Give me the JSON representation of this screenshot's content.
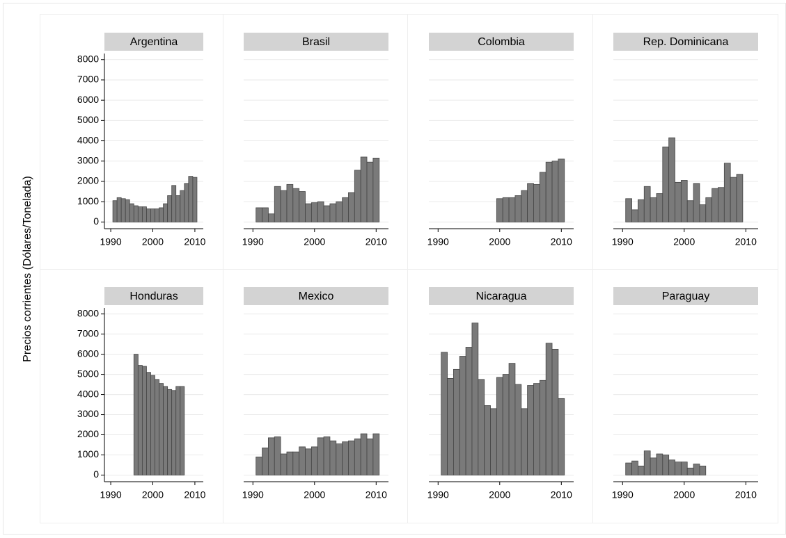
{
  "chart_data": {
    "type": "bar",
    "ylabel": "Precios corrientes (Dólares/Tonelada)",
    "x": [
      1991,
      1992,
      1993,
      1994,
      1995,
      1996,
      1997,
      1998,
      1999,
      2000,
      2001,
      2002,
      2003,
      2004,
      2005,
      2006,
      2007,
      2008,
      2009,
      2010
    ],
    "xlim": [
      1988.5,
      2012
    ],
    "xticks": [
      1990,
      2000,
      2010
    ],
    "ylim": [
      -330,
      8300
    ],
    "yticks": [
      0,
      1000,
      2000,
      3000,
      4000,
      5000,
      6000,
      7000,
      8000
    ],
    "grid": true,
    "color": "#7a7a7a",
    "panels": [
      {
        "title": "Argentina",
        "values": [
          1050,
          1200,
          1150,
          1100,
          900,
          800,
          750,
          750,
          650,
          650,
          650,
          700,
          900,
          1300,
          1800,
          1300,
          1550,
          1900,
          2250,
          2200
        ]
      },
      {
        "title": "Brasil",
        "values": [
          700,
          700,
          400,
          1750,
          1550,
          1850,
          1650,
          1500,
          900,
          950,
          1000,
          800,
          900,
          1000,
          1200,
          1450,
          2550,
          3200,
          2950,
          3150
        ]
      },
      {
        "title": "Colombia",
        "values": [
          null,
          null,
          null,
          null,
          null,
          null,
          null,
          null,
          null,
          1150,
          1200,
          1200,
          1300,
          1550,
          1900,
          1850,
          2450,
          2950,
          3000,
          3100
        ]
      },
      {
        "title": "Rep. Dominicana",
        "values": [
          1150,
          600,
          1100,
          1750,
          1200,
          1400,
          3700,
          4150,
          1950,
          2050,
          1050,
          1900,
          850,
          1200,
          1650,
          1700,
          2900,
          2200,
          2350,
          null
        ]
      },
      {
        "title": "Honduras",
        "values": [
          null,
          null,
          null,
          null,
          null,
          6000,
          5450,
          5400,
          5100,
          4950,
          4750,
          4550,
          4400,
          4250,
          4200,
          4400,
          4400,
          null,
          null,
          null
        ]
      },
      {
        "title": "Mexico",
        "values": [
          900,
          1350,
          1850,
          1900,
          1050,
          1150,
          1150,
          1400,
          1300,
          1400,
          1850,
          1900,
          1700,
          1550,
          1650,
          1700,
          1800,
          2050,
          1800,
          2050
        ]
      },
      {
        "title": "Nicaragua",
        "values": [
          6100,
          4800,
          5250,
          5900,
          6350,
          7550,
          4750,
          3450,
          3300,
          4850,
          5000,
          5550,
          4500,
          3300,
          4450,
          4550,
          4700,
          6550,
          6250,
          3800
        ]
      },
      {
        "title": "Paraguay",
        "values": [
          600,
          700,
          450,
          1200,
          850,
          1050,
          1000,
          750,
          650,
          650,
          350,
          550,
          450,
          null,
          null,
          null,
          null,
          null,
          null,
          null
        ]
      }
    ]
  }
}
